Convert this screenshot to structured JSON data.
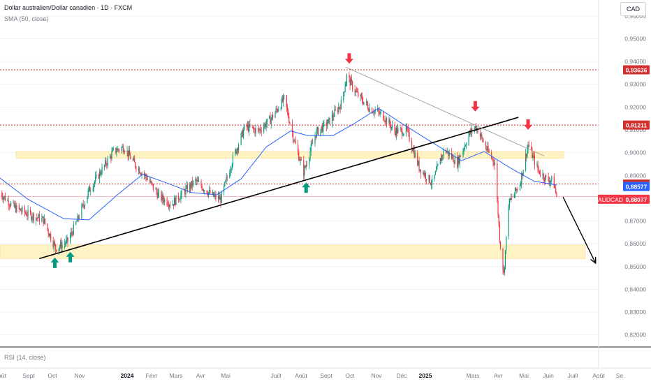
{
  "header": {
    "symbol_line": "Dollar australien/Dollar canadien · 1D · FXCM",
    "indicator": "SMA (50, close)",
    "currency_button": "CAD"
  },
  "rsi_pane": {
    "label": "RSI (14, close)"
  },
  "colors": {
    "up": "#089981",
    "down": "#f23645",
    "sma": "#2962ff",
    "zone": "#fff3c4",
    "resistance": "#d32f2f",
    "trendline": "#000000"
  },
  "chart_data": {
    "type": "candlestick",
    "symbol": "AUDCAD",
    "y_axis": {
      "range": [
        0.815,
        0.967
      ],
      "ticks": [
        "0,96000",
        "0,95000",
        "0,94000",
        "0,93000",
        "0,92000",
        "0,91000",
        "0,90000",
        "0,89000",
        "0,88000",
        "0,87000",
        "0,86000",
        "0,85000",
        "0,84000",
        "0,83000",
        "0,82000"
      ]
    },
    "x_axis": {
      "labels": [
        "Août",
        "Sept",
        "Oct",
        "Nov",
        "2024",
        "Févr",
        "Mars",
        "Avr",
        "Mai",
        "Juill",
        "Août",
        "Sept",
        "Oct",
        "Nov",
        "Déc",
        "2025",
        "Mars",
        "Avr",
        "Mai",
        "Juin",
        "Juill",
        "Août",
        "Se"
      ],
      "bold_labels": [
        "2024",
        "2025"
      ]
    },
    "price_path": [
      [
        "2023-07-28",
        0.8825
      ],
      [
        "2023-08-15",
        0.876
      ],
      [
        "2023-09-01",
        0.873
      ],
      [
        "2023-09-20",
        0.8705
      ],
      [
        "2023-10-05",
        0.858
      ],
      [
        "2023-10-20",
        0.861
      ],
      [
        "2023-11-01",
        0.8705
      ],
      [
        "2023-11-15",
        0.8835
      ],
      [
        "2023-12-01",
        0.8925
      ],
      [
        "2023-12-15",
        0.9005
      ],
      [
        "2023-12-28",
        0.9025
      ],
      [
        "2024-01-10",
        0.895
      ],
      [
        "2024-01-25",
        0.889
      ],
      [
        "2024-02-10",
        0.8805
      ],
      [
        "2024-02-25",
        0.8775
      ],
      [
        "2024-03-10",
        0.8825
      ],
      [
        "2024-03-25",
        0.8875
      ],
      [
        "2024-04-15",
        0.881
      ],
      [
        "2024-04-25",
        0.8795
      ],
      [
        "2024-05-10",
        0.8975
      ],
      [
        "2024-05-25",
        0.9115
      ],
      [
        "2024-06-10",
        0.9095
      ],
      [
        "2024-06-25",
        0.9145
      ],
      [
        "2024-07-12",
        0.9235
      ],
      [
        "2024-07-25",
        0.9045
      ],
      [
        "2024-08-05",
        0.8915
      ],
      [
        "2024-08-20",
        0.9085
      ],
      [
        "2024-09-05",
        0.9135
      ],
      [
        "2024-09-20",
        0.9215
      ],
      [
        "2024-09-27",
        0.9335
      ],
      [
        "2024-10-10",
        0.9255
      ],
      [
        "2024-10-25",
        0.9195
      ],
      [
        "2024-11-10",
        0.9165
      ],
      [
        "2024-11-25",
        0.9095
      ],
      [
        "2024-12-10",
        0.9095
      ],
      [
        "2024-12-25",
        0.8935
      ],
      [
        "2025-01-10",
        0.8865
      ],
      [
        "2025-01-25",
        0.9015
      ],
      [
        "2025-02-10",
        0.8955
      ],
      [
        "2025-02-25",
        0.9085
      ],
      [
        "2025-03-05",
        0.9115
      ],
      [
        "2025-03-18",
        0.9015
      ],
      [
        "2025-03-28",
        0.8955
      ],
      [
        "2025-04-03",
        0.8625
      ],
      [
        "2025-04-08",
        0.8465
      ],
      [
        "2025-04-14",
        0.8775
      ],
      [
        "2025-04-28",
        0.8865
      ],
      [
        "2025-05-08",
        0.9035
      ],
      [
        "2025-05-20",
        0.8925
      ],
      [
        "2025-05-30",
        0.8885
      ],
      [
        "2025-06-08",
        0.8875
      ],
      [
        "2025-06-12",
        0.8808
      ]
    ],
    "sma_50_path": [
      [
        "2023-07-28",
        0.889
      ],
      [
        "2023-09-01",
        0.8795
      ],
      [
        "2023-10-15",
        0.871
      ],
      [
        "2023-11-15",
        0.8705
      ],
      [
        "2023-12-20",
        0.8815
      ],
      [
        "2024-01-20",
        0.8905
      ],
      [
        "2024-02-20",
        0.8865
      ],
      [
        "2024-03-20",
        0.8825
      ],
      [
        "2024-04-20",
        0.8815
      ],
      [
        "2024-05-20",
        0.8885
      ],
      [
        "2024-06-20",
        0.9025
      ],
      [
        "2024-07-20",
        0.9095
      ],
      [
        "2024-08-10",
        0.9075
      ],
      [
        "2024-09-10",
        0.9075
      ],
      [
        "2024-10-05",
        0.9125
      ],
      [
        "2024-11-05",
        0.9195
      ],
      [
        "2024-12-05",
        0.9125
      ],
      [
        "2025-01-10",
        0.9045
      ],
      [
        "2025-02-15",
        0.8965
      ],
      [
        "2025-03-15",
        0.9005
      ],
      [
        "2025-04-15",
        0.8935
      ],
      [
        "2025-05-15",
        0.8875
      ],
      [
        "2025-06-12",
        0.8858
      ]
    ],
    "support_zones": [
      [
        0.8975,
        0.9005
      ],
      [
        0.8535,
        0.8595
      ]
    ],
    "horizontal_levels": [
      {
        "value": 0.93636,
        "label": "0,93636"
      },
      {
        "value": 0.91211,
        "label": "0,91211"
      },
      {
        "value": 0.88621,
        "label": "0,88621"
      }
    ],
    "price_labels": {
      "sma": "0,88577",
      "sma_value": 0.88577,
      "last": "0,88077",
      "last_value": 0.88077,
      "symbol": "AUDCAD"
    },
    "trendlines": [
      {
        "from": [
          "2023-09-15",
          0.8535
        ],
        "to": [
          "2025-04-26",
          0.9155
        ]
      },
      {
        "from": [
          "2024-09-26",
          0.9375
        ],
        "to": [
          "2025-05-28",
          0.8985
        ]
      }
    ],
    "projection_arrow": {
      "from": [
        "2025-06-20",
        0.8805
      ],
      "to": [
        "2025-07-30",
        0.8515
      ]
    },
    "arrows_up": [
      [
        "2023-10-04",
        0.8515
      ],
      [
        "2023-10-23",
        0.854
      ],
      [
        "2024-08-08",
        0.8845
      ]
    ],
    "arrows_down": [
      [
        "2024-09-30",
        0.9415
      ],
      [
        "2025-03-04",
        0.9205
      ],
      [
        "2025-05-08",
        0.9125
      ]
    ],
    "grid": true
  }
}
